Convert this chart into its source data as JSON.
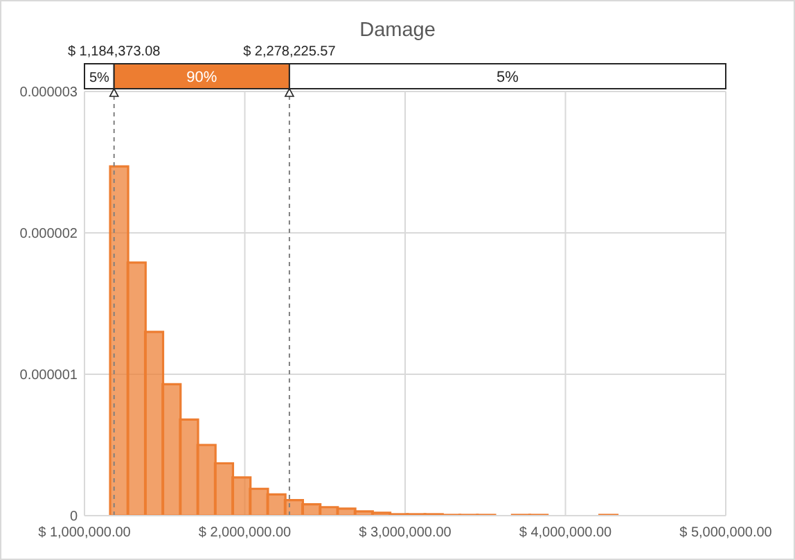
{
  "chart_data": {
    "type": "histogram",
    "title": "Damage",
    "bins": [
      1160000,
      1269000,
      1378000,
      1487000,
      1596000,
      1705000,
      1814000,
      1923000,
      2032000,
      2141000,
      2250000,
      2359000,
      2468000,
      2577000,
      2686000,
      2795000,
      2904000,
      3013000,
      3122000,
      3231000,
      3340000,
      3449000,
      3558000,
      3667000,
      3776000,
      3885000,
      3994000,
      4103000,
      4212000,
      4321000
    ],
    "values": [
      2.47e-06,
      1.79e-06,
      1.3e-06,
      9.3e-07,
      6.8e-07,
      5e-07,
      3.7e-07,
      2.7e-07,
      1.9e-07,
      1.5e-07,
      1.1e-07,
      8e-08,
      6e-08,
      5e-08,
      3e-08,
      2e-08,
      1e-08,
      1e-08,
      1e-08,
      5e-09,
      5e-09,
      5e-09,
      0,
      5e-09,
      5e-09,
      0,
      0,
      0,
      5e-09
    ],
    "color": "#ed7d31",
    "xlim": [
      1000000,
      5000000
    ],
    "xticks": [
      {
        "value": 1000000,
        "label": "$ 1,000,000.00"
      },
      {
        "value": 2000000,
        "label": "$ 2,000,000.00"
      },
      {
        "value": 3000000,
        "label": "$ 3,000,000.00"
      },
      {
        "value": 4000000,
        "label": "$ 4,000,000.00"
      },
      {
        "value": 5000000,
        "label": "$ 5,000,000.00"
      }
    ],
    "ylim": [
      0,
      3e-06
    ],
    "yticks": [
      0,
      {
        "value": 1e-06,
        "label": "0.000001"
      },
      {
        "value": 2e-06,
        "label": "0.000002"
      },
      {
        "value": 3e-06,
        "label": "0.000003"
      }
    ],
    "grid": true,
    "ref_lines": [
      {
        "axis": "x",
        "value": 1184373.08,
        "label": "$ 1,184,373.08",
        "color": "#7f7f7f",
        "line_style": "dashed"
      },
      {
        "axis": "x",
        "value": 2278225.57,
        "label": "$ 2,278,225.57",
        "color": "#7f7f7f",
        "line_style": "dashed"
      }
    ],
    "annotations": [
      "5%",
      "90%",
      "5%"
    ]
  }
}
